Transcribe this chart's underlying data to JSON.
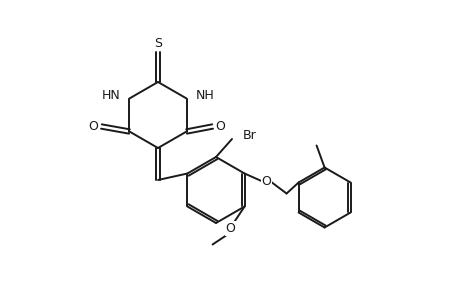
{
  "bg_color": "#ffffff",
  "line_color": "#1a1a1a",
  "line_width": 1.4,
  "font_size": 8.5,
  "figsize": [
    4.6,
    3.0
  ],
  "dpi": 100,
  "atoms": {
    "S_label": "S",
    "HN_left": "HN",
    "NH_right": "NH",
    "O_left": "O",
    "O_right": "O",
    "Br_label": "Br",
    "O_ether": "O",
    "O_methoxy": "O"
  }
}
